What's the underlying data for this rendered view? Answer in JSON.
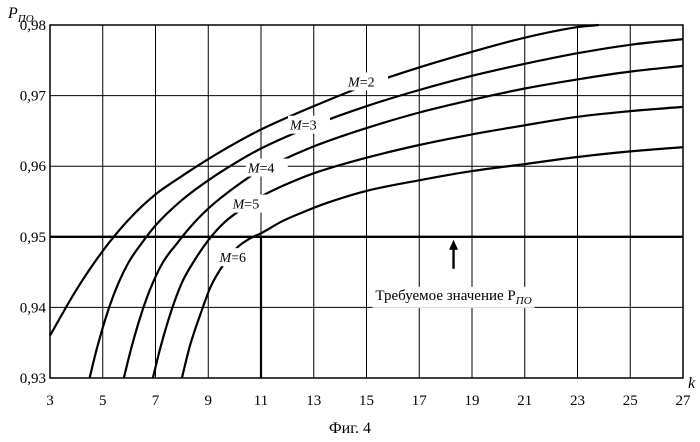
{
  "chart_data": {
    "type": "line",
    "ylabel": "P",
    "ylabel_sub": "ПО",
    "xlabel": "k",
    "x_ticks": [
      "3",
      "5",
      "7",
      "9",
      "11",
      "13",
      "15",
      "17",
      "19",
      "21",
      "23",
      "25",
      "27"
    ],
    "y_ticks": [
      "0,93",
      "0,94",
      "0,95",
      "0,96",
      "0,97",
      "0,98"
    ],
    "xlim": [
      3,
      27
    ],
    "ylim": [
      0.93,
      0.98
    ],
    "grid": true,
    "series": [
      {
        "name": "M=2",
        "label_prefix": "M",
        "label_value": "=2",
        "x": [
          3,
          4,
          5,
          6,
          7,
          8,
          9,
          10,
          11,
          13,
          15,
          17,
          19,
          21,
          23,
          23.8
        ],
        "y": [
          0.936,
          0.9425,
          0.948,
          0.9525,
          0.956,
          0.9586,
          0.961,
          0.9632,
          0.9652,
          0.9685,
          0.9715,
          0.974,
          0.9762,
          0.9782,
          0.9797,
          0.98
        ]
      },
      {
        "name": "M=3",
        "label_prefix": "M",
        "label_value": "=3",
        "x": [
          4.5,
          4.8,
          5.2,
          5.6,
          6,
          6.5,
          7,
          8,
          9,
          10,
          11,
          13,
          15,
          17,
          19,
          21,
          23,
          25,
          27
        ],
        "y": [
          0.93,
          0.9345,
          0.9395,
          0.9435,
          0.9465,
          0.9492,
          0.9516,
          0.9552,
          0.958,
          0.9604,
          0.9625,
          0.9658,
          0.9685,
          0.9708,
          0.9728,
          0.9745,
          0.976,
          0.9772,
          0.978
        ]
      },
      {
        "name": "M=4",
        "label_prefix": "M",
        "label_value": "=4",
        "x": [
          5.8,
          6.1,
          6.5,
          6.9,
          7.3,
          7.8,
          8.3,
          9,
          10,
          11,
          12,
          13,
          15,
          17,
          19,
          21,
          23,
          25,
          27
        ],
        "y": [
          0.93,
          0.9345,
          0.9395,
          0.9435,
          0.9465,
          0.949,
          0.9513,
          0.954,
          0.957,
          0.9595,
          0.9612,
          0.9628,
          0.9654,
          0.9676,
          0.9694,
          0.971,
          0.9723,
          0.9734,
          0.9742
        ]
      },
      {
        "name": "M=5",
        "label_prefix": "M",
        "label_value": "=5",
        "x": [
          6.9,
          7.2,
          7.6,
          8,
          8.5,
          9,
          9.6,
          10.3,
          11,
          12,
          13,
          15,
          17,
          19,
          21,
          23,
          25,
          27
        ],
        "y": [
          0.93,
          0.9345,
          0.9395,
          0.9435,
          0.9468,
          0.9495,
          0.952,
          0.954,
          0.9557,
          0.9575,
          0.959,
          0.9612,
          0.963,
          0.9645,
          0.9658,
          0.967,
          0.9678,
          0.9684
        ]
      },
      {
        "name": "M=6",
        "label_prefix": "M",
        "label_value": "=6",
        "x": [
          8,
          8.3,
          8.7,
          9.1,
          9.6,
          10.1,
          10.6,
          11,
          11.8,
          12.6,
          13.5,
          15,
          17,
          19,
          21,
          23,
          25,
          27
        ],
        "y": [
          0.93,
          0.9345,
          0.939,
          0.943,
          0.9462,
          0.9485,
          0.9498,
          0.9505,
          0.9522,
          0.9535,
          0.9548,
          0.9565,
          0.958,
          0.9593,
          0.9603,
          0.9613,
          0.9621,
          0.9627
        ]
      }
    ],
    "threshold": {
      "y": 0.95,
      "label": "Требуемое значение P",
      "label_sub": "ПО"
    },
    "marker_x": 11,
    "caption": "Фиг. 4"
  }
}
